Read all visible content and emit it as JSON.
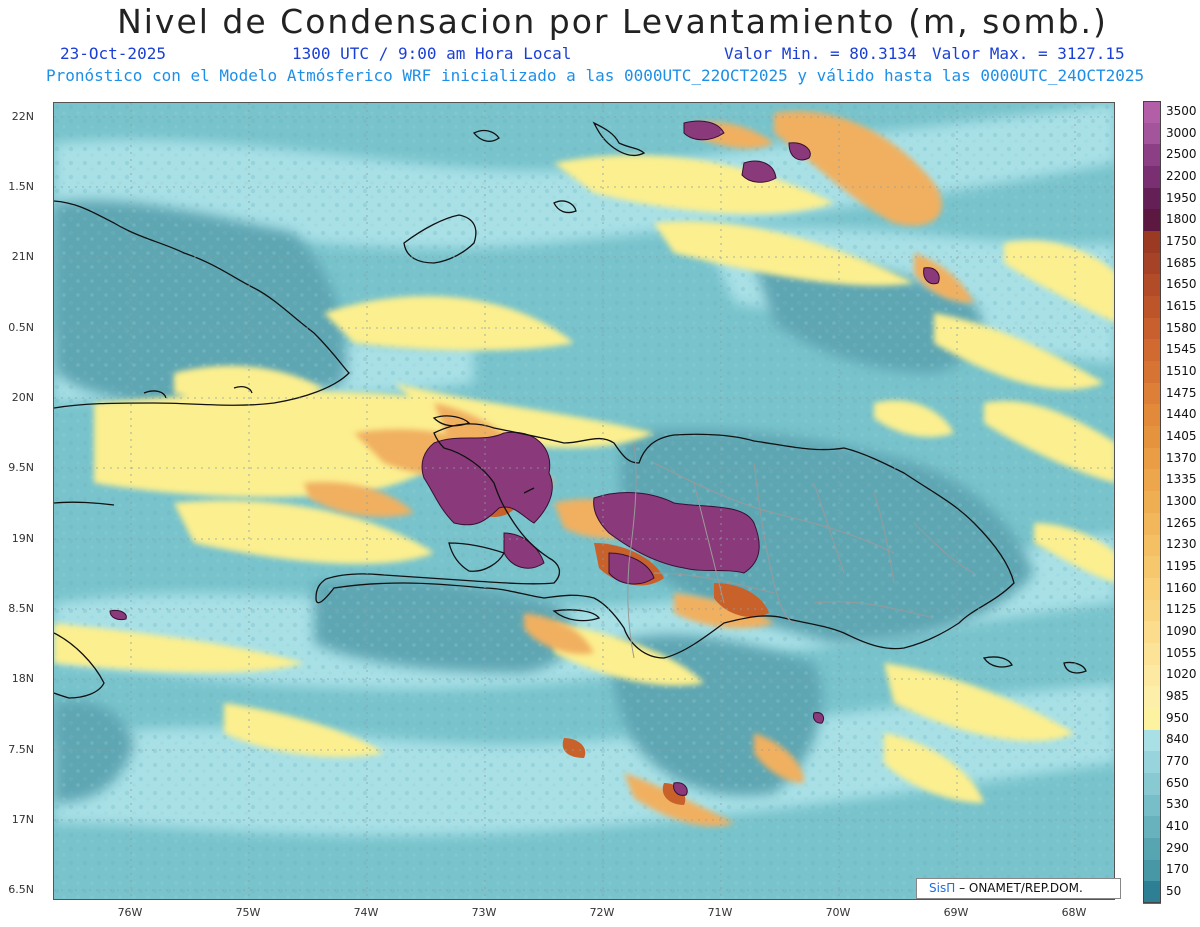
{
  "header": {
    "title": "Nivel de Condensacion por Levantamiento (m, somb.)",
    "date": "23-Oct-2025",
    "time": "1300 UTC / 9:00 am Hora Local",
    "valor_min": "Valor Min. = 80.3134",
    "valor_max": "Valor Max. = 3127.15",
    "model_line": "Pronóstico con el Modelo Atmósferico WRF inicializado a las 0000UTC_22OCT2025 y válido hasta las  0000UTC_24OCT2025"
  },
  "map": {
    "lat_labels": [
      "22N",
      "1.5N",
      "21N",
      "0.5N",
      "20N",
      "9.5N",
      "19N",
      "8.5N",
      "18N",
      "7.5N",
      "17N",
      "6.5N"
    ],
    "lon_labels": [
      "76W",
      "75W",
      "74W",
      "73W",
      "72W",
      "71W",
      "70W",
      "69W",
      "68W"
    ],
    "colors": {
      "ocean_mid": "#78c3cc",
      "ocean_light": "#a8e0e6",
      "land_dark": "#5ea6b3",
      "yellow": "#fcef8f",
      "orange": "#f0b060",
      "brown": "#c8622a",
      "purple": "#8a3a7a",
      "coast": "#111111",
      "border": "#9a9a9a"
    }
  },
  "legend": {
    "labels": [
      "3500",
      "3000",
      "2500",
      "2200",
      "1950",
      "1800",
      "1750",
      "1685",
      "1650",
      "1615",
      "1580",
      "1545",
      "1510",
      "1475",
      "1440",
      "1405",
      "1370",
      "1335",
      "1300",
      "1265",
      "1230",
      "1195",
      "1160",
      "1125",
      "1090",
      "1055",
      "1020",
      "985",
      "950",
      "840",
      "770",
      "650",
      "530",
      "410",
      "290",
      "170",
      "50"
    ],
    "colors": [
      "#b25fa8",
      "#a3549b",
      "#8c3f85",
      "#7a2f73",
      "#651f57",
      "#5c1840",
      "#9a3a22",
      "#a64226",
      "#b24b28",
      "#bd552b",
      "#c75f2e",
      "#d06a31",
      "#d77434",
      "#dd7f37",
      "#e2893a",
      "#e6933e",
      "#ea9d44",
      "#eda64b",
      "#f0ae52",
      "#f3b75b",
      "#f5bf64",
      "#f7c76e",
      "#f9cf78",
      "#fad683",
      "#fbdd8d",
      "#fce397",
      "#fde9a1",
      "#fdeeaa",
      "#fdf2a0",
      "#a8e0e6",
      "#98d4dc",
      "#88c9d2",
      "#78bec8",
      "#68b2bd",
      "#58a5b2",
      "#4797a6",
      "#2f7f94"
    ]
  },
  "credit": {
    "brand": "SisΠ",
    "agency": "– ONAMET/REP.DOM."
  }
}
